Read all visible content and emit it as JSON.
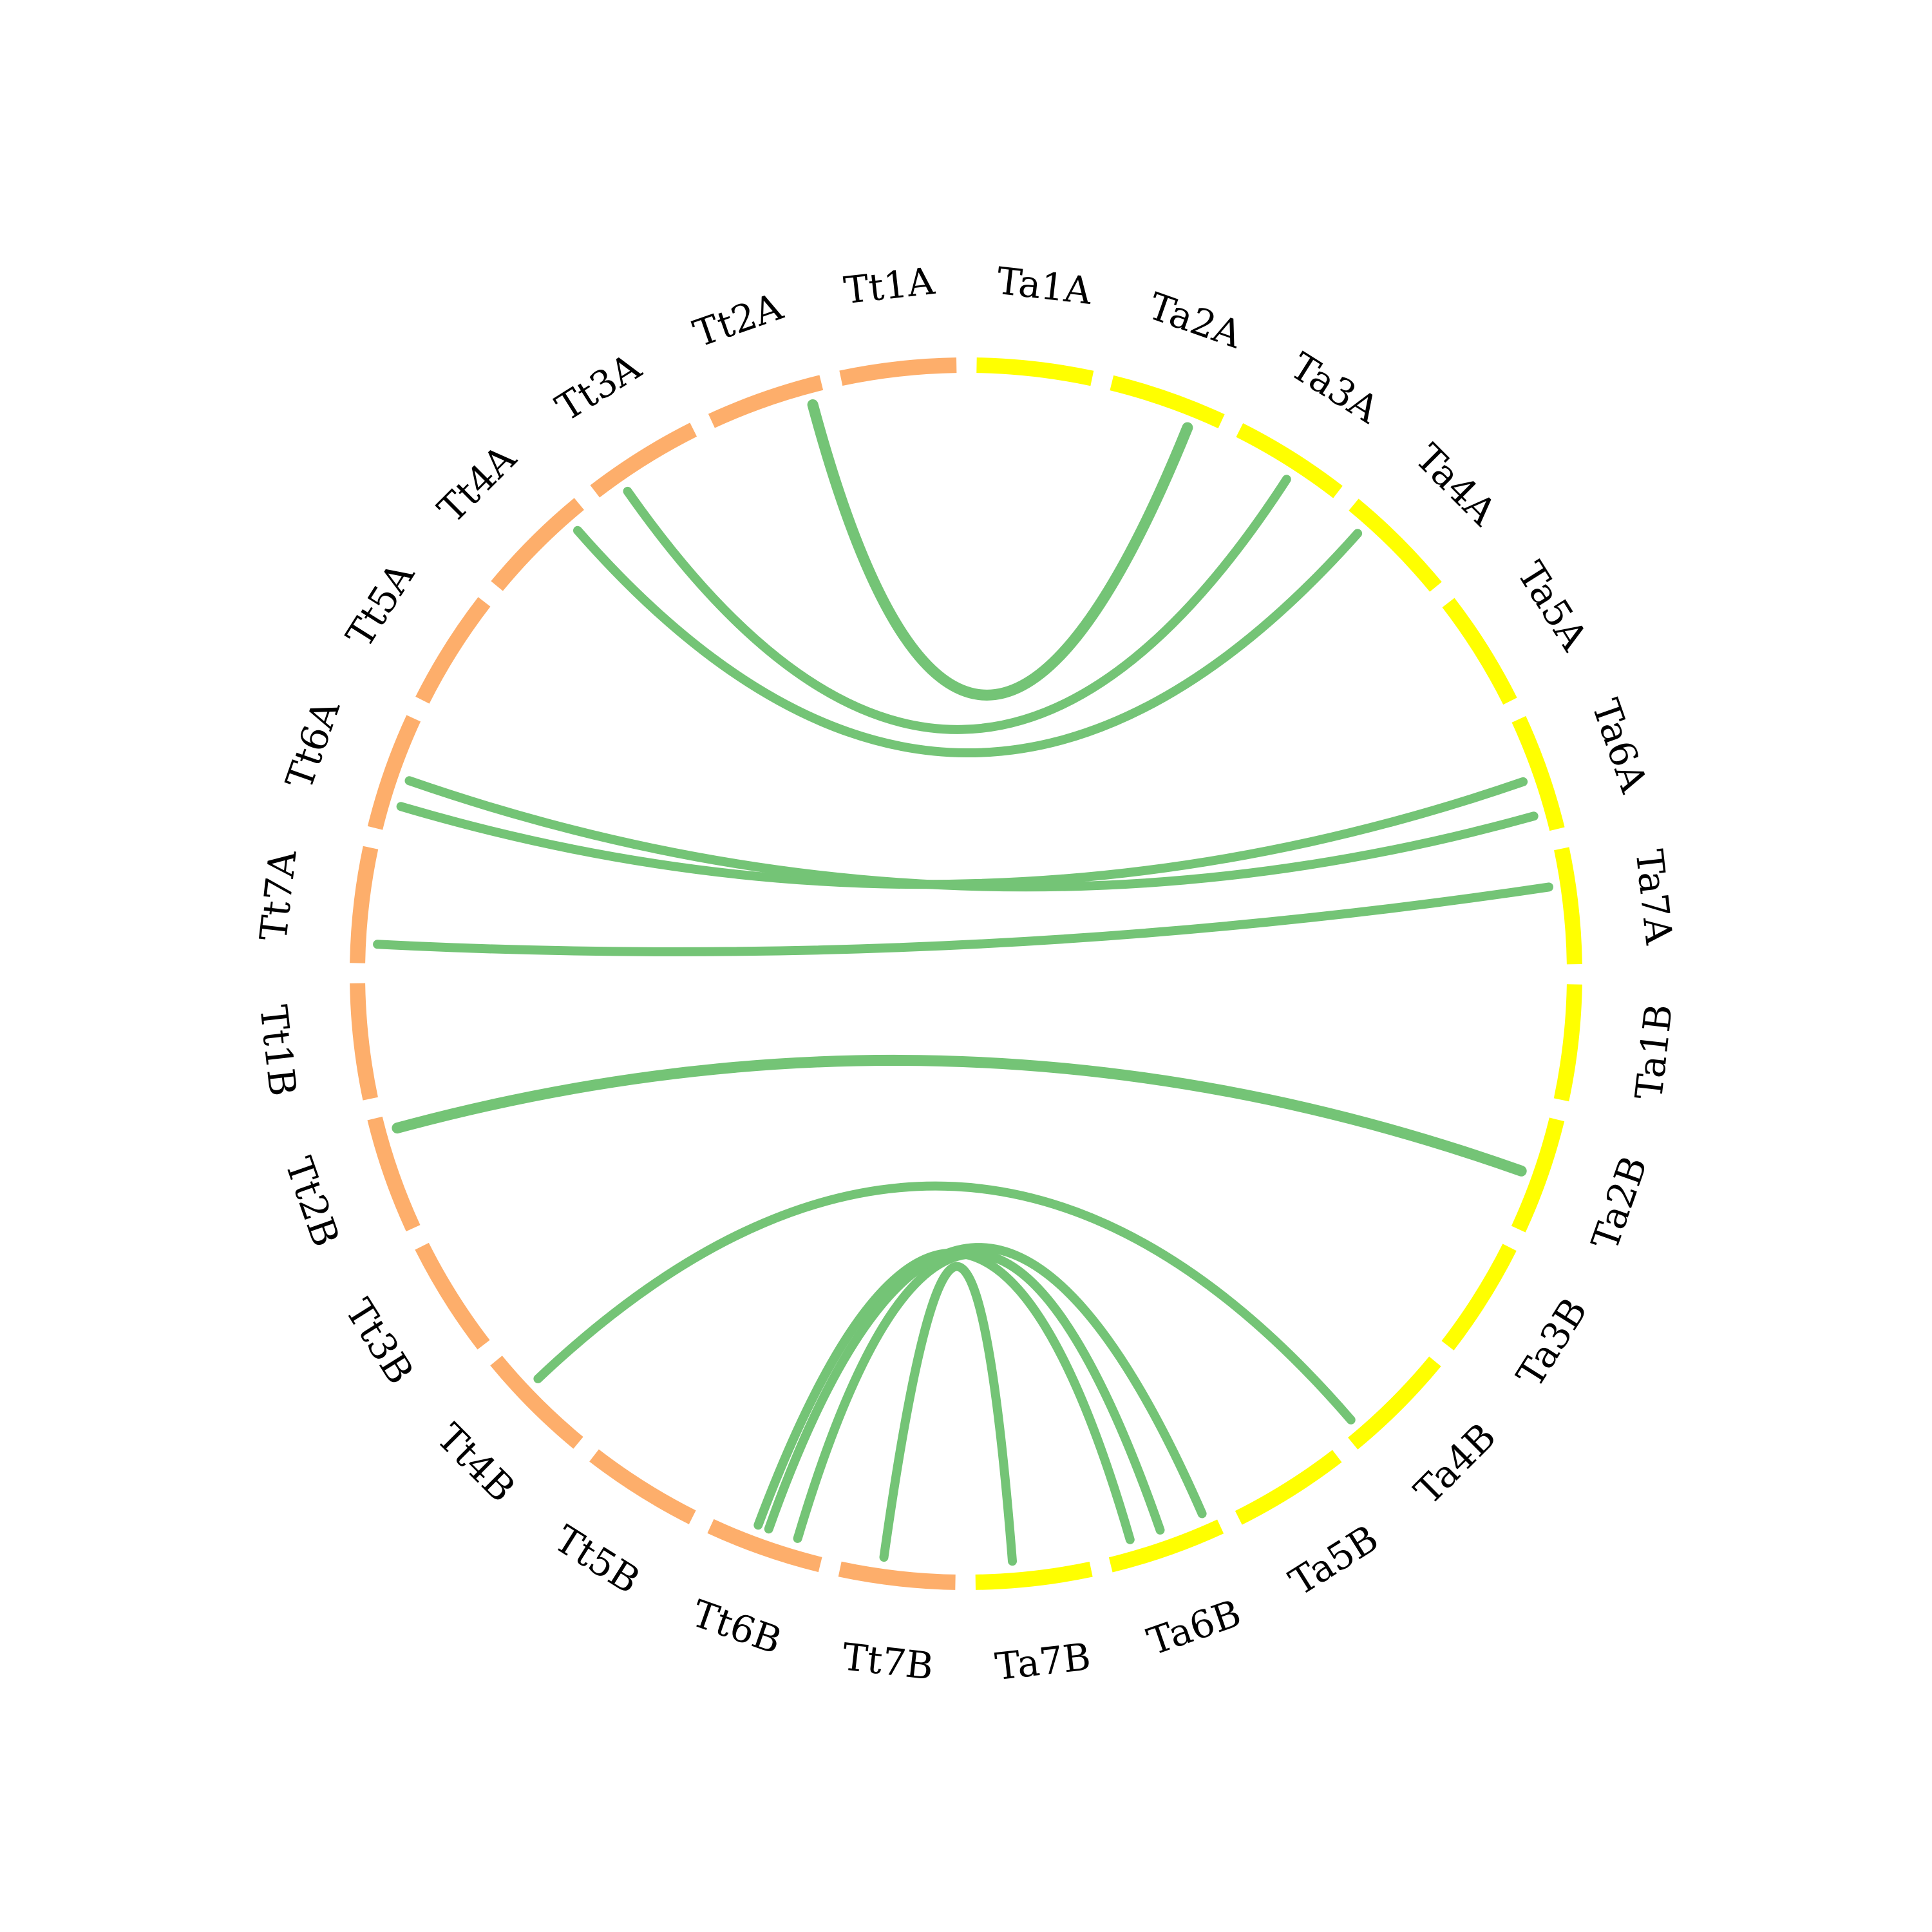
{
  "chart_data": {
    "type": "chord",
    "colors": {
      "tt": "#fdae6b",
      "ta": "#ffff00",
      "link": "#74c476"
    },
    "chromosomes": [
      {
        "name": "Ta1A",
        "group": "ta"
      },
      {
        "name": "Ta2A",
        "group": "ta"
      },
      {
        "name": "Ta3A",
        "group": "ta"
      },
      {
        "name": "Ta4A",
        "group": "ta"
      },
      {
        "name": "Ta5A",
        "group": "ta"
      },
      {
        "name": "Ta6A",
        "group": "ta"
      },
      {
        "name": "Ta7A",
        "group": "ta"
      },
      {
        "name": "Ta1B",
        "group": "ta"
      },
      {
        "name": "Ta2B",
        "group": "ta"
      },
      {
        "name": "Ta3B",
        "group": "ta"
      },
      {
        "name": "Ta4B",
        "group": "ta"
      },
      {
        "name": "Ta5B",
        "group": "ta"
      },
      {
        "name": "Ta6B",
        "group": "ta"
      },
      {
        "name": "Ta7B",
        "group": "ta"
      },
      {
        "name": "Tt7B",
        "group": "tt"
      },
      {
        "name": "Tt6B",
        "group": "tt"
      },
      {
        "name": "Tt5B",
        "group": "tt"
      },
      {
        "name": "Tt4B",
        "group": "tt"
      },
      {
        "name": "Tt3B",
        "group": "tt"
      },
      {
        "name": "Tt2B",
        "group": "tt"
      },
      {
        "name": "Tt1B",
        "group": "tt"
      },
      {
        "name": "Tt7A",
        "group": "tt"
      },
      {
        "name": "Tt6A",
        "group": "tt"
      },
      {
        "name": "Tt5A",
        "group": "tt"
      },
      {
        "name": "Tt4A",
        "group": "tt"
      },
      {
        "name": "Tt3A",
        "group": "tt"
      },
      {
        "name": "Tt2A",
        "group": "tt"
      },
      {
        "name": "Tt1A",
        "group": "tt"
      }
    ],
    "links": [
      {
        "a": "Tt2A",
        "pa": 0.88,
        "b": "Ta2A",
        "pb": 0.75,
        "weight": 3
      },
      {
        "a": "Tt3A",
        "pa": 0.23,
        "b": "Ta3A",
        "pb": 0.57,
        "weight": 2
      },
      {
        "a": "Tt4A",
        "pa": 0.84,
        "b": "Ta4A",
        "pb": 0.19,
        "weight": 2
      },
      {
        "a": "Tt6A",
        "pa": 0.24,
        "b": "Ta6A",
        "pb": 0.52,
        "weight": 2
      },
      {
        "a": "Tt6A",
        "pa": 0.48,
        "b": "Ta6A",
        "pb": 0.84,
        "weight": 2
      },
      {
        "a": "Tt7A",
        "pa": 0.17,
        "b": "Ta7A",
        "pb": 0.31,
        "weight": 2
      },
      {
        "a": "Tt2B",
        "pa": 0.87,
        "b": "Ta2B",
        "pb": 0.52,
        "weight": 3
      },
      {
        "a": "Tt4B",
        "pa": 0.64,
        "b": "Ta4B",
        "pb": 0.88,
        "weight": 2
      },
      {
        "a": "Tt6B",
        "pa": 0.25,
        "b": "Ta6B",
        "pb": 0.5,
        "weight": 2
      },
      {
        "a": "Tt6B",
        "pa": 0.52,
        "b": "Ta6B",
        "pb": 0.1,
        "weight": 2
      },
      {
        "a": "Tt7B",
        "pa": 0.64,
        "b": "Ta7B",
        "pb": 0.67,
        "weight": 2
      },
      {
        "a": "Tt6B",
        "pa": 0.62,
        "b": "Ta6B",
        "pb": 0.78,
        "weight": 2
      }
    ]
  }
}
